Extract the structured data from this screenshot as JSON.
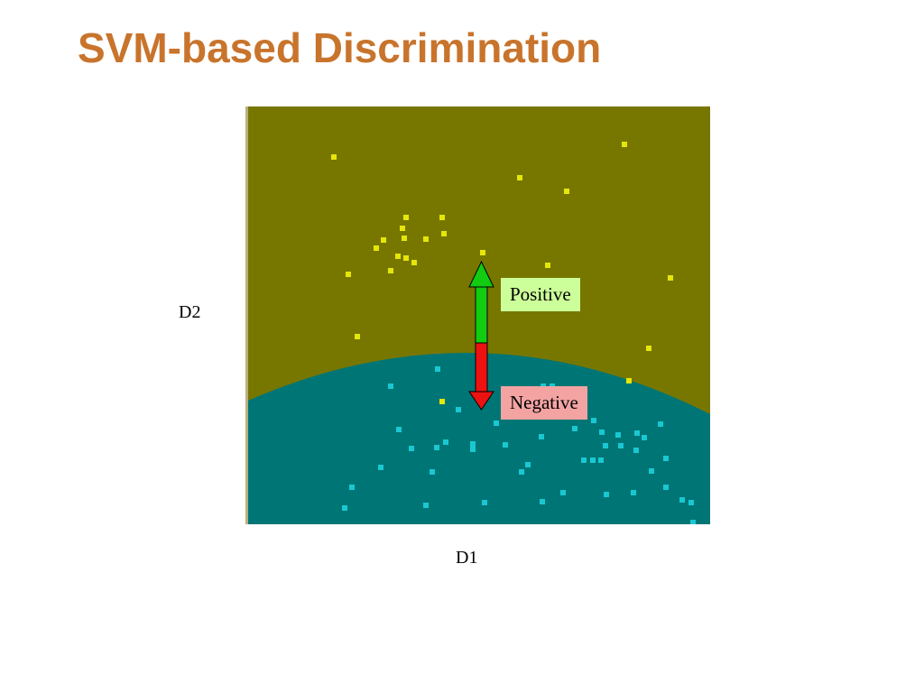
{
  "slide": {
    "title": "SVM-based Discrimination"
  },
  "axes": {
    "x_label": "D1",
    "y_label": "D2"
  },
  "labels": {
    "positive": "Positive",
    "negative": "Negative"
  },
  "colors": {
    "title": "#c8742c",
    "positive_region": "#777700",
    "negative_region": "#007575",
    "positive_points": "#e6e60a",
    "negative_points": "#19c8d2",
    "arrow_up": "#11cc11",
    "arrow_down": "#ee1111",
    "positive_tag_bg": "#ccff99",
    "negative_tag_bg": "#f4a3a3"
  }
}
